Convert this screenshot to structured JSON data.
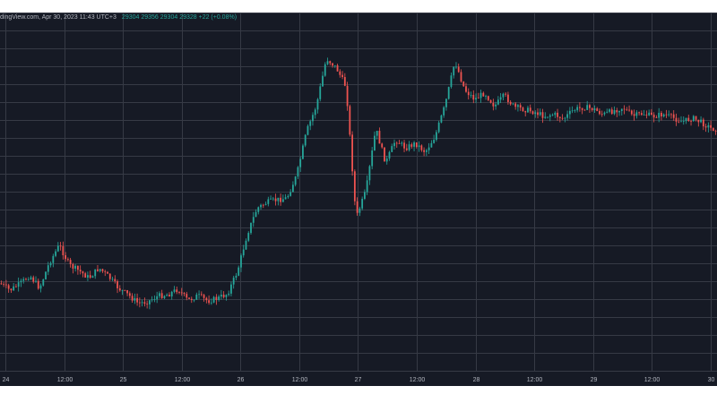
{
  "header": {
    "source_date": "dingView.com, Apr 30, 2023 11:43 UTC+3",
    "o": "29304",
    "h": "29356",
    "l": "29304",
    "c": "29328",
    "change": "+22 (+0.08%)"
  },
  "colors": {
    "background": "#161a25",
    "grid": "#363a45",
    "up": "#26a69a",
    "down": "#ef5350",
    "text": "#b2b5be"
  },
  "chart_data": {
    "type": "candlestick",
    "x_tick_labels": [
      "24",
      "12:00",
      "25",
      "12:00",
      "26",
      "12:00",
      "27",
      "12:00",
      "28",
      "12:00",
      "29",
      "12:00",
      "30"
    ],
    "x_range": [
      0,
      145
    ],
    "y_range": [
      100,
      0
    ],
    "y_axis_labels_visible": false,
    "grid": true,
    "series": [
      {
        "kind": "price_path",
        "points": [
          [
            0,
            75.6
          ],
          [
            2,
            77.5
          ],
          [
            4,
            75.8
          ],
          [
            6,
            73.4
          ],
          [
            8,
            76.9
          ],
          [
            10,
            69.8
          ],
          [
            12,
            64.9
          ],
          [
            14,
            70.5
          ],
          [
            16,
            72.1
          ],
          [
            18,
            74.1
          ],
          [
            20,
            71.3
          ],
          [
            22,
            73.8
          ],
          [
            24,
            77.0
          ],
          [
            26,
            78.9
          ],
          [
            28,
            81.2
          ],
          [
            30,
            80.6
          ],
          [
            32,
            79.1
          ],
          [
            34,
            78.7
          ],
          [
            36,
            77.2
          ],
          [
            38,
            80.4
          ],
          [
            40,
            79.0
          ],
          [
            42,
            80.5
          ],
          [
            44,
            79.8
          ],
          [
            46,
            78.5
          ],
          [
            48,
            72.3
          ],
          [
            50,
            61.8
          ],
          [
            52,
            54.6
          ],
          [
            54,
            53.0
          ],
          [
            56,
            52.3
          ],
          [
            58,
            51.8
          ],
          [
            60,
            45.4
          ],
          [
            62,
            33.2
          ],
          [
            64,
            25.9
          ],
          [
            66,
            12.8
          ],
          [
            68,
            15.4
          ],
          [
            70,
            20.8
          ],
          [
            72,
            57.4
          ],
          [
            74,
            49.8
          ],
          [
            76,
            32.4
          ],
          [
            78,
            42.0
          ],
          [
            80,
            35.5
          ],
          [
            82,
            37.8
          ],
          [
            84,
            36.5
          ],
          [
            86,
            38.9
          ],
          [
            88,
            34.5
          ],
          [
            90,
            25.9
          ],
          [
            92,
            13.6
          ],
          [
            94,
            21.6
          ],
          [
            96,
            24.2
          ],
          [
            98,
            22.4
          ],
          [
            100,
            26.1
          ],
          [
            102,
            23.1
          ],
          [
            104,
            26.4
          ],
          [
            106,
            27.0
          ],
          [
            108,
            27.7
          ],
          [
            110,
            28.9
          ],
          [
            112,
            28.4
          ],
          [
            114,
            29.6
          ],
          [
            116,
            27.2
          ],
          [
            118,
            26.4
          ],
          [
            120,
            26.9
          ],
          [
            122,
            28.5
          ],
          [
            124,
            27.4
          ],
          [
            126,
            26.5
          ],
          [
            128,
            28.9
          ],
          [
            130,
            28.2
          ],
          [
            132,
            29.0
          ],
          [
            134,
            28.4
          ],
          [
            136,
            29.3
          ],
          [
            138,
            30.5
          ],
          [
            140,
            29.4
          ],
          [
            142,
            30.8
          ],
          [
            144,
            32.5
          ],
          [
            145,
            32.4
          ]
        ]
      }
    ]
  }
}
